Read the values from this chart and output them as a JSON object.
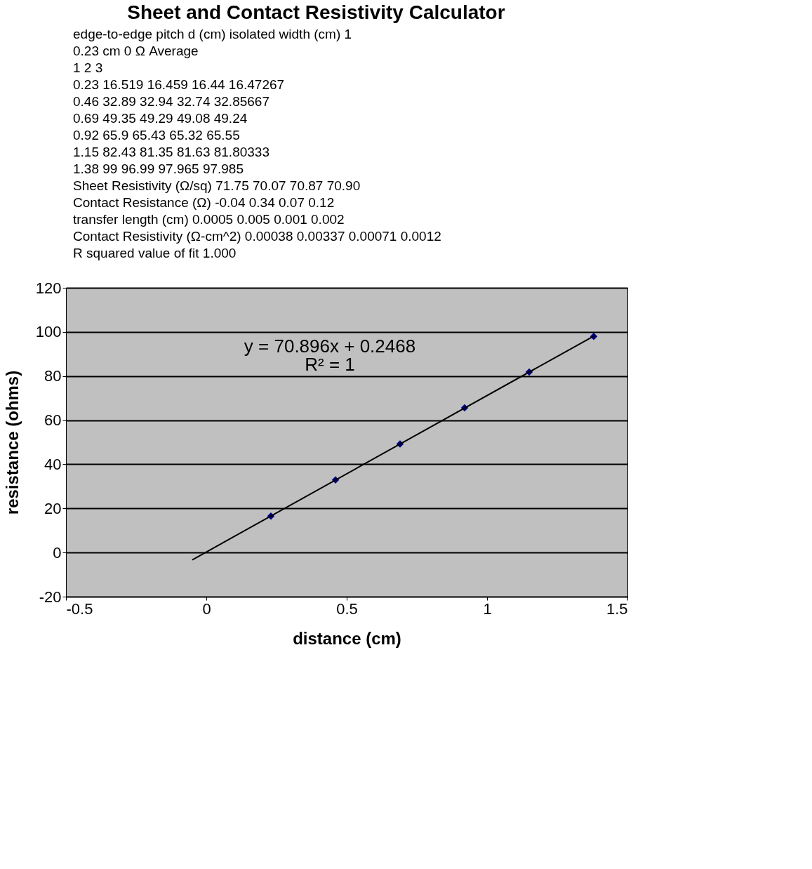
{
  "chart_data": {
    "type": "scatter",
    "title": "Sheet and Contact Resistivity Calculator",
    "xlabel": "distance (cm)",
    "ylabel": "resistance (ohms)",
    "x": [
      0.23,
      0.46,
      0.69,
      0.92,
      1.15,
      1.38
    ],
    "series": [
      {
        "color": "#000080",
        "marker": "diamond",
        "values": [
          16.5,
          32.9,
          49.2,
          65.6,
          81.8,
          98.0
        ]
      },
      {
        "type": "line",
        "color": "#000000",
        "x": [
          -0.05,
          1.38
        ],
        "values": [
          -3.3,
          98.1
        ]
      }
    ],
    "xlim": [
      -0.5,
      1.5
    ],
    "xticks": [
      -0.5,
      0,
      0.5,
      1,
      {
        "value": 1.5,
        "label": "1.5"
      }
    ],
    "ylim": [
      -20,
      120
    ],
    "yticks": [
      -20,
      0,
      20,
      40,
      60,
      80,
      100,
      120
    ],
    "grid": "y",
    "annotations": [
      "y = 70.896x + 0.2468",
      "R² = 1",
      "edge-to-edge pitch     d (cm)  isolated width (cm)     1",
      "0.23 cm     0     Ω     Average",
      "1     2     3",
      "0.23     16.519     16.459     16.44     16.47267",
      "0.46     32.89     32.94     32.74     32.85667",
      "0.69     49.35     49.29     49.08     49.24",
      "0.92     65.9     65.43     65.32     65.55",
      "1.15     82.43     81.35     81.63     81.80333",
      "1.38     99     96.99     97.965     97.985",
      "Sheet Resistivity (Ω/sq)     71.75     70.07     70.87     70.90",
      "Contact Resistance (Ω)     -0.04     0.34     0.07     0.12",
      "transfer length (cm)     0.0005     0.005     0.001     0.002",
      "Contact Resistivity (Ω-cm^2)     0.00038     0.00337     0.00071     0.0012",
      "R squared value of fit     1.000"
    ]
  }
}
